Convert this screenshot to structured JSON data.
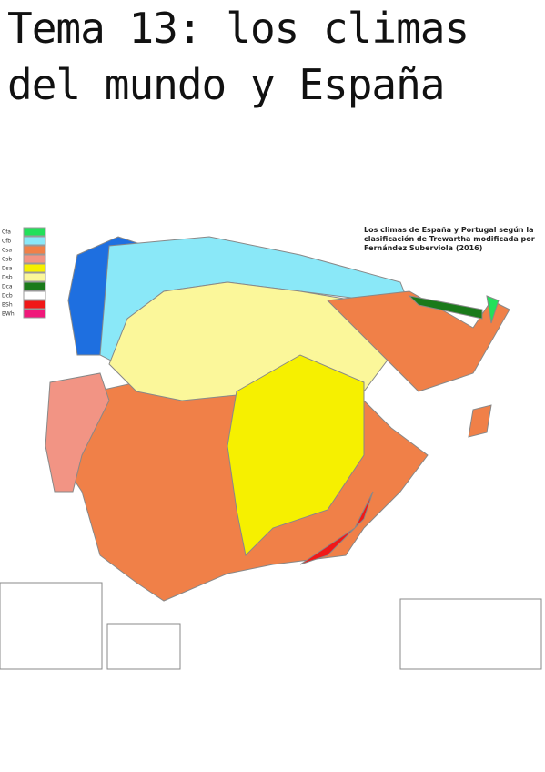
{
  "header": {
    "title_lines": [
      "Tema 13: los climas",
      "del mundo y España"
    ]
  },
  "map": {
    "caption": "Los climas de España y Portugal según la clasificación de Trewartha modificada por Fernández Suberviola (2016)",
    "legend": [
      {
        "label": "Cfa",
        "color": "#22e05a"
      },
      {
        "label": "Cfb",
        "color": "#8ae8f8"
      },
      {
        "label": "Csa",
        "color": "#f08048"
      },
      {
        "label": "Csb",
        "color": "#f29484"
      },
      {
        "label": "Dsa",
        "color": "#f6f000"
      },
      {
        "label": "Dsb",
        "color": "#fbf79a"
      },
      {
        "label": "Dca",
        "color": "#1a7a1a"
      },
      {
        "label": "Dcb",
        "color": "#ffffff"
      },
      {
        "label": "BSh",
        "color": "#f01818"
      },
      {
        "label": "BWh",
        "color": "#f0187a"
      }
    ]
  }
}
